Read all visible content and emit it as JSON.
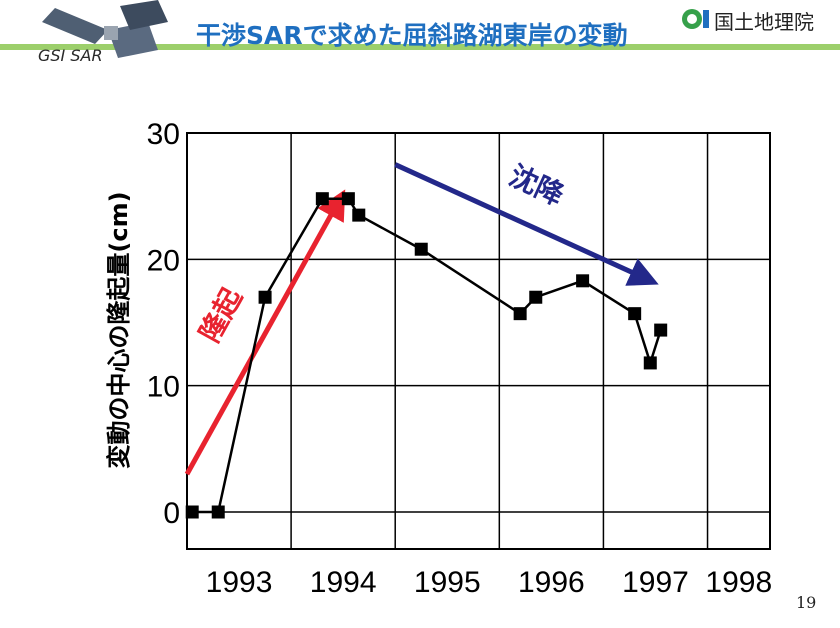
{
  "slide": {
    "title": "干渉SARで求めた屈斜路湖東岸の変動",
    "logo_text": "GSI SAR",
    "organization": "国土地理院",
    "page_number": "19"
  },
  "chart_data": {
    "type": "line",
    "title": "",
    "xlabel": "",
    "ylabel": "変動の中心の隆起量(cm)",
    "xlim": [
      1993.0,
      1998.6
    ],
    "ylim": [
      0,
      30
    ],
    "x_ticks": [
      "1993",
      "1994",
      "1995",
      "1996",
      "1997",
      "1998"
    ],
    "y_ticks": [
      0,
      10,
      20,
      30
    ],
    "grid": true,
    "series": [
      {
        "x": [
          1993.05,
          1993.3,
          1993.75,
          1994.3,
          1994.55,
          1994.65,
          1995.25,
          1996.2,
          1996.35,
          1996.8,
          1997.3,
          1997.45,
          1997.55
        ],
        "y": [
          0,
          0,
          17,
          24.8,
          24.8,
          23.5,
          20.8,
          15.7,
          17,
          18.3,
          15.7,
          11.8,
          14.4
        ]
      }
    ],
    "annotations": [
      {
        "text": "隆起",
        "color": "#e8232f",
        "from": [
          1993.0,
          3.0
        ],
        "to": [
          1994.45,
          24.5
        ]
      },
      {
        "text": "沈降",
        "color": "#23288a",
        "from": [
          1995.0,
          27.5
        ],
        "to": [
          1997.4,
          18.5
        ]
      }
    ],
    "colors": {
      "line": "#000000",
      "marker": "#000000",
      "up_arrow": "#e8232f",
      "down_arrow": "#23288a"
    }
  }
}
